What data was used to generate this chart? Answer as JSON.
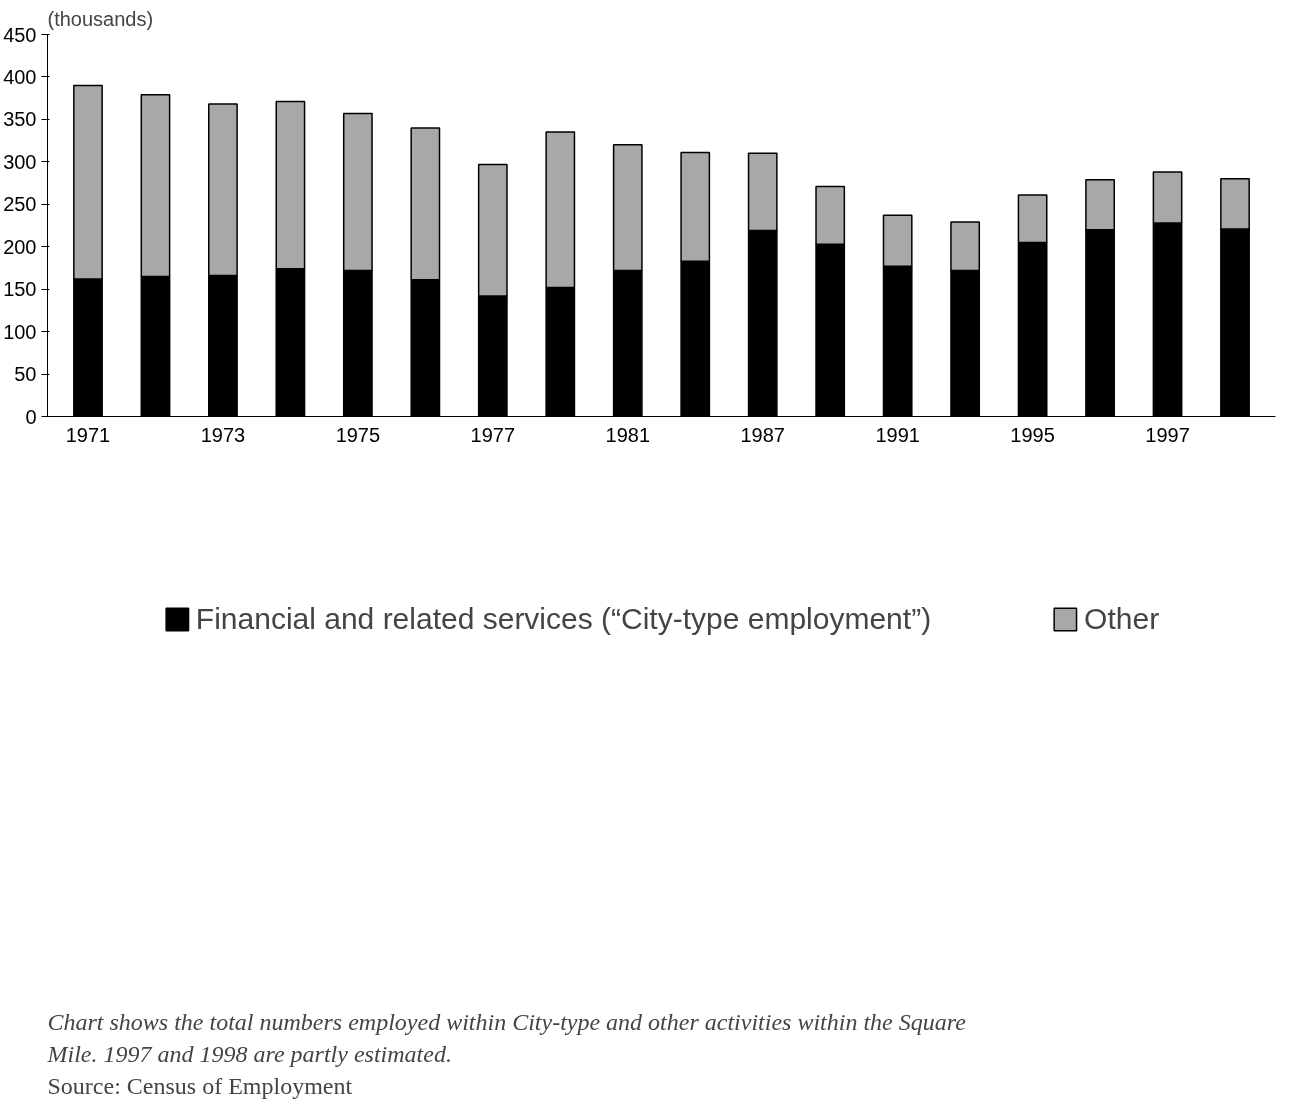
{
  "chart_data": {
    "type": "bar",
    "stacked": true,
    "ylabel": "(thousands)",
    "categories": [
      "1971",
      null,
      "1973",
      null,
      "1975",
      null,
      "1977",
      null,
      "1981",
      null,
      "1987",
      null,
      "1991",
      null,
      "1995",
      null,
      "1997",
      null
    ],
    "series": [
      {
        "name": "Financial and related services (“City-type employment”)",
        "color": "#000000",
        "values": [
          162,
          165,
          166,
          174,
          172,
          161,
          142,
          152,
          172,
          183,
          219,
          203,
          177,
          172,
          205,
          220,
          228,
          221
        ]
      },
      {
        "name": "Other",
        "color": "#a8a8a8",
        "values": [
          228,
          214,
          202,
          197,
          185,
          179,
          155,
          183,
          148,
          128,
          91,
          68,
          60,
          57,
          56,
          59,
          60,
          59
        ]
      }
    ],
    "ylim": [
      0,
      450
    ],
    "yticks": [
      0,
      50,
      100,
      150,
      200,
      250,
      300,
      350,
      400,
      450
    ],
    "grid": false,
    "legend": "bottom",
    "annotations": [
      "Chart shows the total numbers employed within City-type and other activities within the Square Mile. 1997 and 1998 are partly estimated.",
      "Source: Census of Employment"
    ]
  }
}
